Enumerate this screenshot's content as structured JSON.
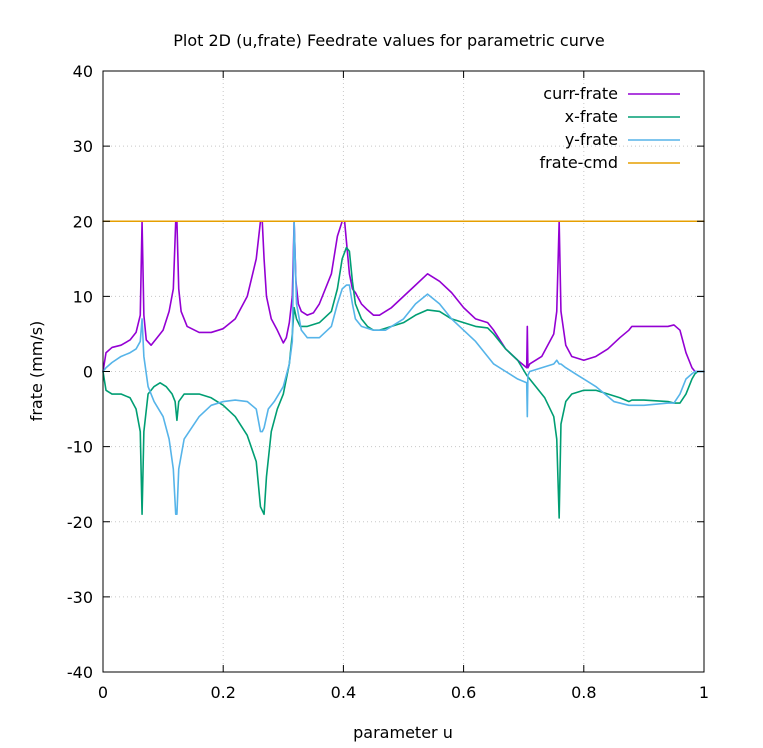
{
  "chart_data": {
    "type": "line",
    "title": "Plot 2D (u,frate) Feedrate values for parametric curve",
    "xlabel": "parameter u",
    "ylabel": "frate (mm/s)",
    "xlim": [
      0,
      1
    ],
    "ylim": [
      -40,
      40
    ],
    "x_ticks": [
      "0",
      "0.2",
      "0.4",
      "0.6",
      "0.8",
      "1"
    ],
    "y_ticks": [
      "40",
      "30",
      "20",
      "10",
      "0",
      "-10",
      "-20",
      "-30",
      "-40"
    ],
    "grid": true,
    "legend_position": "top-right",
    "series": [
      {
        "name": "curr-frate",
        "color": "#9400d3",
        "x": [
          0,
          0.005,
          0.015,
          0.03,
          0.045,
          0.055,
          0.062,
          0.065,
          0.068,
          0.072,
          0.08,
          0.09,
          0.1,
          0.11,
          0.117,
          0.121,
          0.123,
          0.126,
          0.13,
          0.14,
          0.16,
          0.18,
          0.2,
          0.22,
          0.24,
          0.255,
          0.262,
          0.265,
          0.268,
          0.272,
          0.28,
          0.29,
          0.3,
          0.305,
          0.31,
          0.315,
          0.318,
          0.321,
          0.325,
          0.33,
          0.34,
          0.35,
          0.36,
          0.38,
          0.39,
          0.398,
          0.402,
          0.41,
          0.415,
          0.42,
          0.43,
          0.44,
          0.45,
          0.46,
          0.48,
          0.5,
          0.52,
          0.54,
          0.56,
          0.58,
          0.6,
          0.62,
          0.64,
          0.65,
          0.67,
          0.69,
          0.705,
          0.706,
          0.707,
          0.71,
          0.73,
          0.75,
          0.755,
          0.759,
          0.762,
          0.77,
          0.78,
          0.8,
          0.82,
          0.84,
          0.86,
          0.875,
          0.88,
          0.9,
          0.94,
          0.95,
          0.96,
          0.97,
          0.98,
          0.985,
          0.99,
          1
        ],
        "y": [
          0,
          2.5,
          3.2,
          3.5,
          4.2,
          5.2,
          7.5,
          20,
          7.5,
          4.2,
          3.5,
          4.5,
          5.5,
          8,
          11,
          20,
          20,
          11,
          8,
          6,
          5.2,
          5.2,
          5.7,
          7,
          10,
          15,
          20,
          20,
          15,
          10,
          7,
          5.5,
          3.8,
          4.5,
          6.5,
          10,
          20,
          12,
          9,
          8,
          7.5,
          7.8,
          9,
          13,
          18,
          20,
          20,
          13,
          11,
          10.5,
          9,
          8.2,
          7.5,
          7.5,
          8.5,
          10,
          11.5,
          13,
          12,
          10.5,
          8.5,
          7,
          6.5,
          5.5,
          3,
          1.5,
          0.5,
          6,
          0.5,
          1,
          2,
          5,
          8,
          20,
          8,
          3.5,
          2,
          1.5,
          2,
          3,
          4.5,
          5.5,
          6,
          6,
          6,
          6.2,
          5.5,
          2.5,
          0.5,
          0,
          0,
          0
        ]
      },
      {
        "name": "x-frate",
        "color": "#009e73",
        "x": [
          0,
          0.005,
          0.015,
          0.03,
          0.045,
          0.055,
          0.062,
          0.065,
          0.068,
          0.075,
          0.085,
          0.095,
          0.105,
          0.115,
          0.12,
          0.123,
          0.126,
          0.135,
          0.16,
          0.18,
          0.2,
          0.22,
          0.24,
          0.255,
          0.262,
          0.265,
          0.268,
          0.272,
          0.28,
          0.29,
          0.3,
          0.31,
          0.315,
          0.318,
          0.322,
          0.328,
          0.34,
          0.36,
          0.38,
          0.39,
          0.398,
          0.405,
          0.41,
          0.415,
          0.42,
          0.43,
          0.44,
          0.45,
          0.46,
          0.48,
          0.5,
          0.52,
          0.54,
          0.56,
          0.58,
          0.6,
          0.62,
          0.64,
          0.65,
          0.67,
          0.69,
          0.705,
          0.71,
          0.72,
          0.735,
          0.75,
          0.755,
          0.759,
          0.762,
          0.77,
          0.78,
          0.8,
          0.82,
          0.84,
          0.86,
          0.875,
          0.88,
          0.9,
          0.94,
          0.95,
          0.96,
          0.97,
          0.98,
          0.985,
          0.99,
          1
        ],
        "y": [
          0,
          -2.5,
          -3,
          -3,
          -3.5,
          -5,
          -8,
          -19,
          -8,
          -3,
          -2,
          -1.5,
          -2,
          -3,
          -4,
          -6.5,
          -4,
          -3,
          -3,
          -3.5,
          -4.5,
          -6,
          -8.5,
          -12,
          -18,
          -18.5,
          -19,
          -14,
          -8,
          -5,
          -3,
          1,
          5,
          8.5,
          7,
          6,
          6,
          6.5,
          8,
          11,
          15,
          16.5,
          16,
          12,
          9,
          7,
          6,
          5.5,
          5.5,
          6,
          6.5,
          7.5,
          8.2,
          8,
          7,
          6.5,
          6,
          5.8,
          5,
          3,
          1.5,
          -0.5,
          -1,
          -2,
          -3.5,
          -6,
          -9,
          -19.5,
          -7,
          -4,
          -3,
          -2.5,
          -2.5,
          -3,
          -3.5,
          -4,
          -3.8,
          -3.8,
          -4,
          -4.2,
          -4.2,
          -3,
          -1,
          -0.3,
          0,
          0
        ]
      },
      {
        "name": "y-frate",
        "color": "#56b4e9",
        "x": [
          0,
          0.005,
          0.015,
          0.03,
          0.045,
          0.055,
          0.062,
          0.065,
          0.068,
          0.075,
          0.085,
          0.1,
          0.11,
          0.117,
          0.121,
          0.123,
          0.126,
          0.135,
          0.16,
          0.18,
          0.2,
          0.22,
          0.24,
          0.255,
          0.262,
          0.265,
          0.268,
          0.275,
          0.285,
          0.3,
          0.31,
          0.315,
          0.318,
          0.322,
          0.33,
          0.34,
          0.36,
          0.38,
          0.39,
          0.398,
          0.405,
          0.41,
          0.415,
          0.42,
          0.43,
          0.45,
          0.47,
          0.5,
          0.52,
          0.54,
          0.56,
          0.58,
          0.6,
          0.62,
          0.64,
          0.65,
          0.67,
          0.69,
          0.705,
          0.706,
          0.707,
          0.71,
          0.73,
          0.75,
          0.755,
          0.759,
          0.762,
          0.77,
          0.79,
          0.82,
          0.85,
          0.875,
          0.88,
          0.9,
          0.94,
          0.95,
          0.96,
          0.97,
          0.98,
          0.985,
          0.99,
          1
        ],
        "y": [
          0,
          0.5,
          1.2,
          2,
          2.5,
          3,
          4,
          7,
          2,
          -2,
          -4,
          -6,
          -9,
          -13,
          -19,
          -19,
          -13,
          -9,
          -6,
          -4.5,
          -4,
          -3.8,
          -4,
          -5,
          -8,
          -8,
          -7.5,
          -5,
          -4,
          -2,
          1,
          4,
          20,
          9,
          5.5,
          4.5,
          4.5,
          6,
          9,
          11,
          11.5,
          11.5,
          9,
          7,
          6,
          5.5,
          5.5,
          7,
          9,
          10.3,
          9,
          7,
          5.5,
          4,
          2,
          1,
          0,
          -1,
          -1.5,
          -6,
          -0.5,
          0,
          0.5,
          1,
          1.5,
          1,
          1,
          0.5,
          -0.5,
          -2,
          -4,
          -4.5,
          -4.5,
          -4.5,
          -4.2,
          -4.2,
          -3,
          -1,
          -0.3,
          0,
          0,
          0
        ]
      },
      {
        "name": "frate-cmd",
        "color": "#e69f00",
        "x": [
          0,
          1
        ],
        "y": [
          20,
          20
        ]
      }
    ]
  }
}
